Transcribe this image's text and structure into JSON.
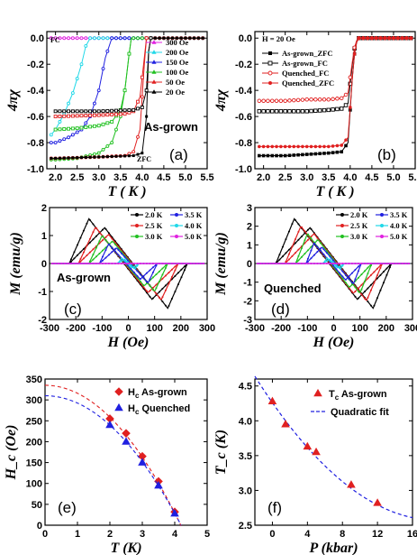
{
  "chart_data": [
    {
      "panel": "a",
      "type": "line",
      "xlabel": "T ( K )",
      "ylabel": "4πχ",
      "xlim": [
        1.8,
        5.5
      ],
      "ylim": [
        -1.0,
        0.05
      ],
      "xticks": [
        "2.0",
        "2.5",
        "3.0",
        "3.5",
        "4.0",
        "4.5",
        "5.0",
        "5.5"
      ],
      "yticks": [
        "0.0",
        "-0.2",
        "-0.4",
        "-0.6",
        "-0.8",
        "-1.0"
      ],
      "panel_label": "(a)",
      "annotations": [
        "As-grown",
        "FC",
        "ZFC"
      ],
      "series": [
        {
          "name": "300 Oe",
          "color": "#e020e0",
          "x": [
            1.9,
            2.0,
            2.1,
            2.2,
            2.3
          ],
          "y": [
            0.0,
            0.0,
            0.0,
            0.0,
            0.0
          ],
          "zfc_x": [
            1.9,
            2.0,
            2.1,
            2.2,
            2.3
          ],
          "zfc_y": [
            0.0,
            0.0,
            0.0,
            0.0,
            0.0
          ]
        },
        {
          "name": "200 Oe",
          "color": "#20d8e8",
          "x": [
            1.9,
            2.0,
            2.2,
            2.4,
            2.6,
            2.7,
            2.8
          ],
          "y": [
            -0.74,
            -0.7,
            -0.58,
            -0.42,
            -0.2,
            -0.06,
            0.0
          ],
          "zfc_x": [
            1.9,
            2.0,
            2.2,
            2.4,
            2.6,
            2.7,
            2.8
          ],
          "zfc_y": [
            -0.74,
            -0.7,
            -0.58,
            -0.42,
            -0.2,
            -0.06,
            0.0
          ]
        },
        {
          "name": "150 Oe",
          "color": "#2020e0",
          "x": [
            1.9,
            2.0,
            2.3,
            2.6,
            2.8,
            3.0,
            3.15,
            3.3
          ],
          "y": [
            -0.8,
            -0.8,
            -0.76,
            -0.7,
            -0.6,
            -0.4,
            -0.15,
            0.0
          ],
          "zfc_x": [
            1.9,
            2.0,
            2.3,
            2.6,
            2.8,
            3.0,
            3.15,
            3.3
          ],
          "zfc_y": [
            -0.8,
            -0.8,
            -0.76,
            -0.7,
            -0.6,
            -0.4,
            -0.15,
            0.0
          ]
        },
        {
          "name": "100 Oe",
          "color": "#20c020",
          "x": [
            1.9,
            2.0,
            2.5,
            3.0,
            3.3,
            3.5,
            3.6,
            3.7,
            3.75
          ],
          "y": [
            -0.93,
            -0.93,
            -0.92,
            -0.88,
            -0.8,
            -0.6,
            -0.4,
            -0.12,
            0.0
          ],
          "fc_x": [
            2.0,
            2.5,
            3.0,
            3.3,
            3.5,
            3.6,
            3.7,
            3.75
          ],
          "fc_y": [
            -0.7,
            -0.69,
            -0.67,
            -0.64,
            -0.55,
            -0.4,
            -0.12,
            0.0
          ]
        },
        {
          "name": "50 Oe",
          "color": "#e02020",
          "x": [
            1.9,
            2.0,
            3.0,
            3.6,
            3.8,
            3.95,
            4.05,
            4.1
          ],
          "y": [
            -0.92,
            -0.92,
            -0.91,
            -0.9,
            -0.87,
            -0.7,
            -0.2,
            0.0
          ],
          "fc_x": [
            2.0,
            3.0,
            3.6,
            3.8,
            3.95,
            4.05,
            4.1
          ],
          "fc_y": [
            -0.6,
            -0.59,
            -0.58,
            -0.56,
            -0.45,
            -0.15,
            0.0
          ]
        },
        {
          "name": "20 Oe",
          "color": "#000000",
          "x": [
            1.9,
            2.0,
            3.0,
            3.8,
            4.0,
            4.1,
            4.15,
            4.2
          ],
          "y": [
            -0.92,
            -0.92,
            -0.91,
            -0.9,
            -0.88,
            -0.6,
            -0.1,
            0.0
          ],
          "fc_x": [
            2.0,
            3.0,
            3.8,
            4.0,
            4.1,
            4.15,
            4.2
          ],
          "fc_y": [
            -0.56,
            -0.56,
            -0.55,
            -0.53,
            -0.4,
            -0.1,
            0.0
          ]
        }
      ]
    },
    {
      "panel": "b",
      "type": "line",
      "xlabel": "T ( K )",
      "ylabel": "4πχ",
      "xlim": [
        1.8,
        5.5
      ],
      "ylim": [
        -1.0,
        0.05
      ],
      "xticks": [
        "2.0",
        "2.5",
        "3.0",
        "3.5",
        "4.0",
        "4.5",
        "5.0",
        "5.5"
      ],
      "yticks": [
        "0.0",
        "-0.2",
        "-0.4",
        "-0.6",
        "-0.8",
        "-1.0"
      ],
      "panel_label": "(b)",
      "annotations": [
        "H = 20 Oe"
      ],
      "series": [
        {
          "name": "As-grown_ZFC",
          "color": "#000000",
          "marker": "filled-square",
          "x": [
            2.0,
            2.5,
            3.0,
            3.5,
            3.8,
            3.95,
            4.05,
            4.12,
            4.2
          ],
          "y": [
            -0.9,
            -0.9,
            -0.89,
            -0.88,
            -0.87,
            -0.8,
            -0.3,
            -0.05,
            0.0
          ]
        },
        {
          "name": "As-grown_FC",
          "color": "#000000",
          "marker": "open-square",
          "x": [
            2.0,
            2.5,
            3.0,
            3.5,
            3.8,
            3.95,
            4.05,
            4.12,
            4.2
          ],
          "y": [
            -0.56,
            -0.56,
            -0.56,
            -0.55,
            -0.54,
            -0.5,
            -0.2,
            -0.03,
            0.0
          ]
        },
        {
          "name": "Quenched_FC",
          "color": "#e02020",
          "marker": "open-circle",
          "x": [
            2.0,
            2.5,
            3.0,
            3.5,
            3.8,
            3.95,
            4.05,
            4.12,
            4.2
          ],
          "y": [
            -0.48,
            -0.48,
            -0.47,
            -0.47,
            -0.46,
            -0.42,
            -0.18,
            -0.03,
            0.0
          ]
        },
        {
          "name": "Quenched_ZFC",
          "color": "#e02020",
          "marker": "filled-circle",
          "x": [
            2.0,
            2.5,
            3.0,
            3.5,
            3.8,
            3.95,
            4.05,
            4.12,
            4.2
          ],
          "y": [
            -0.83,
            -0.83,
            -0.83,
            -0.83,
            -0.82,
            -0.76,
            -0.3,
            -0.05,
            0.0
          ]
        }
      ]
    },
    {
      "panel": "c",
      "type": "line",
      "xlabel": "H (Oe)",
      "ylabel": "M (emu/g)",
      "xlim": [
        -300,
        300
      ],
      "ylim": [
        -2,
        2
      ],
      "xticks": [
        "-300",
        "-200",
        "-100",
        "0",
        "100",
        "200",
        "300"
      ],
      "yticks": [
        "2",
        "1",
        "0",
        "-1",
        "-2"
      ],
      "panel_label": "(c)",
      "annotations": [
        "As-grown"
      ],
      "loops": [
        {
          "name": "2.0 K",
          "color": "#000000",
          "hmax": 225,
          "peak": 1.6,
          "hpk": 150
        },
        {
          "name": "2.5 K",
          "color": "#e02020",
          "hmax": 190,
          "peak": 1.3,
          "hpk": 125
        },
        {
          "name": "3.0 K",
          "color": "#20c020",
          "hmax": 150,
          "peak": 1.0,
          "hpk": 100
        },
        {
          "name": "3.5 K",
          "color": "#2020e0",
          "hmax": 110,
          "peak": 0.7,
          "hpk": 75
        },
        {
          "name": "4.0 K",
          "color": "#20d8e8",
          "hmax": 40,
          "peak": 0.2,
          "hpk": 25
        },
        {
          "name": "5.0 K",
          "color": "#e020e0",
          "hmax": 0,
          "peak": 0.0,
          "hpk": 0
        }
      ]
    },
    {
      "panel": "d",
      "type": "line",
      "xlabel": "H (Oe)",
      "ylabel": "M (emu/g)",
      "xlim": [
        -300,
        300
      ],
      "ylim": [
        -3,
        3
      ],
      "xticks": [
        "-300",
        "-200",
        "-100",
        "0",
        "100",
        "200",
        "300"
      ],
      "yticks": [
        "3",
        "2",
        "1",
        "0",
        "-1",
        "-2",
        "-3"
      ],
      "panel_label": "(d)",
      "annotations": [
        "Quenched"
      ],
      "loops": [
        {
          "name": "2.0 K",
          "color": "#000000",
          "hmax": 220,
          "peak": 2.4,
          "hpk": 150
        },
        {
          "name": "2.5 K",
          "color": "#e02020",
          "hmax": 185,
          "peak": 2.0,
          "hpk": 125
        },
        {
          "name": "3.0 K",
          "color": "#20c020",
          "hmax": 145,
          "peak": 1.6,
          "hpk": 100
        },
        {
          "name": "3.5 K",
          "color": "#2020e0",
          "hmax": 105,
          "peak": 1.1,
          "hpk": 75
        },
        {
          "name": "4.0 K",
          "color": "#20d8e8",
          "hmax": 40,
          "peak": 0.3,
          "hpk": 25
        },
        {
          "name": "5.0 K",
          "color": "#e020e0",
          "hmax": 0,
          "peak": 0.0,
          "hpk": 0
        }
      ]
    },
    {
      "panel": "e",
      "type": "scatter",
      "xlabel": "T (K)",
      "ylabel": "H_c (Oe)",
      "xlim": [
        0,
        5
      ],
      "ylim": [
        0,
        350
      ],
      "xticks": [
        "0",
        "1",
        "2",
        "3",
        "4",
        "5"
      ],
      "yticks": [
        "0",
        "50",
        "100",
        "150",
        "200",
        "250",
        "300",
        "350"
      ],
      "panel_label": "(e)",
      "series": [
        {
          "name": "H_c As-grown",
          "label_main": "H",
          "label_sub": "c",
          "label_rest": " As-grown",
          "color": "#e02020",
          "marker": "diamond",
          "x": [
            2.0,
            2.5,
            3.0,
            3.5,
            4.0
          ],
          "y": [
            255,
            220,
            165,
            105,
            32
          ],
          "fit_a": 335,
          "fit_b": 19.1
        },
        {
          "name": "H_c Quenched",
          "label_main": "H",
          "label_sub": "c",
          "label_rest": " Quenched",
          "color": "#2020e0",
          "marker": "triangle",
          "x": [
            2.0,
            2.5,
            3.0,
            3.5,
            4.0
          ],
          "y": [
            240,
            200,
            150,
            95,
            28
          ],
          "fit_a": 310,
          "fit_b": 17.6
        }
      ]
    },
    {
      "panel": "f",
      "type": "scatter",
      "xlabel": "P (kbar)",
      "ylabel": "T_c (K)",
      "xlim": [
        -2,
        16
      ],
      "ylim": [
        2.5,
        4.6
      ],
      "xticks": [
        "0",
        "4",
        "8",
        "12",
        "16"
      ],
      "yticks": [
        "2.5",
        "3.0",
        "3.5",
        "4.0",
        "4.5"
      ],
      "panel_label": "(f)",
      "series": [
        {
          "name": "T_c As-grown",
          "label_main": "T",
          "label_sub": "c",
          "label_rest": " As-grown",
          "color": "#e02020",
          "marker": "triangle",
          "x": [
            0,
            1.5,
            4,
            5,
            9,
            12
          ],
          "y": [
            4.28,
            3.95,
            3.63,
            3.55,
            3.08,
            2.82
          ]
        },
        {
          "name": "Quadratic fit",
          "color": "#2020e0",
          "dash": true,
          "fit_c0": 4.26,
          "fit_c1": -0.18,
          "fit_c2": 0.0048
        }
      ]
    }
  ]
}
